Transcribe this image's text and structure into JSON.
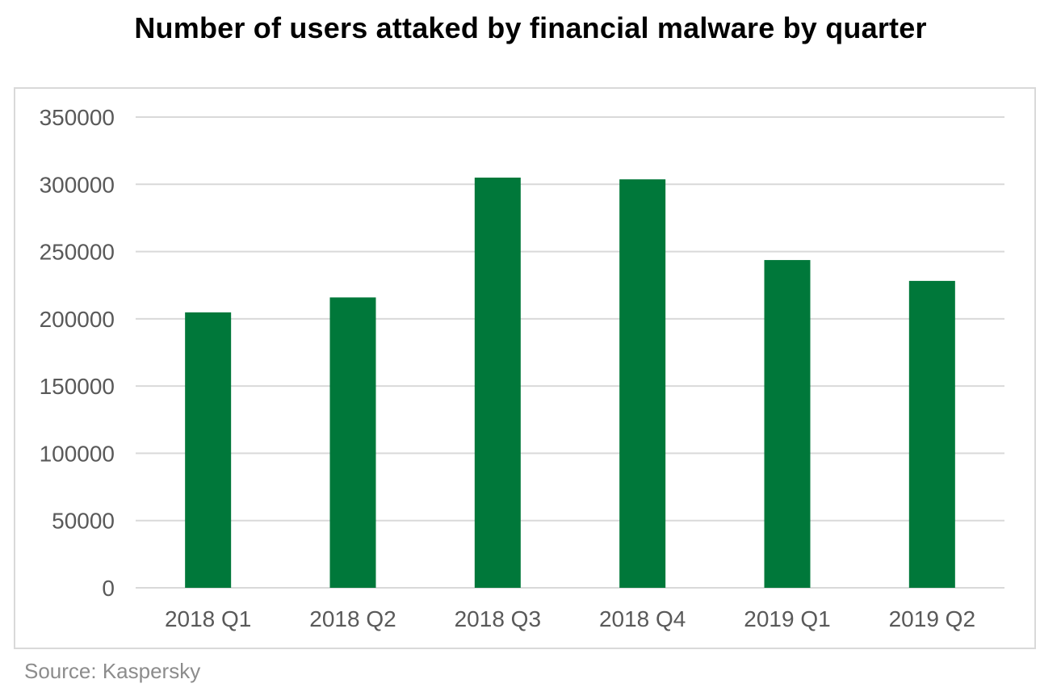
{
  "chart_data": {
    "type": "bar",
    "title": "Number of users attaked by financial malware by quarter",
    "categories": [
      "2018 Q1",
      "2018 Q2",
      "2018 Q3",
      "2018 Q4",
      "2019 Q1",
      "2019 Q2"
    ],
    "series": [
      {
        "values": [
          204800,
          215900,
          305000,
          303700,
          243700,
          228200
        ],
        "color": "#00783a"
      }
    ],
    "ylim": [
      0,
      350000
    ],
    "yticks": [
      "0",
      "50000",
      "100000",
      "150000",
      "200000",
      "250000",
      "300000",
      "350000"
    ],
    "xlabel": "",
    "ylabel": "",
    "grid": true,
    "legend": "none",
    "source": "Source: Kaspersky"
  },
  "colors": {
    "bar": "#00783a",
    "gridline": "#d9d9d9",
    "tick_text": "#595959",
    "source_text": "#8c8c8c"
  }
}
